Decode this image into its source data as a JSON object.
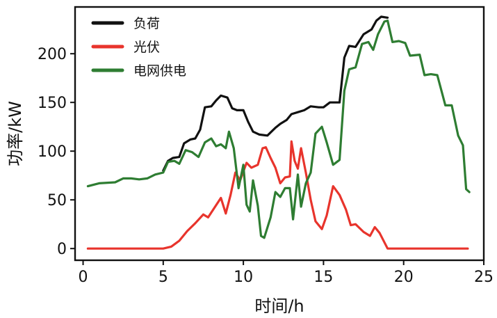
{
  "chart_data": {
    "type": "line",
    "title": "",
    "xlabel": "时间/h",
    "ylabel": "功率/kW",
    "xlim": [
      -0.5,
      25
    ],
    "ylim": [
      -12,
      248
    ],
    "xticks": [
      0,
      5,
      10,
      15,
      20,
      25
    ],
    "yticks": [
      0,
      50,
      100,
      150,
      200
    ],
    "grid": false,
    "legend_position": "top-left",
    "series": [
      {
        "name": "负荷",
        "color": "#111111",
        "points": [
          [
            5.0,
            80
          ],
          [
            5.3,
            90
          ],
          [
            5.6,
            93
          ],
          [
            6.0,
            94
          ],
          [
            6.3,
            108
          ],
          [
            6.7,
            112
          ],
          [
            7.0,
            113
          ],
          [
            7.3,
            122
          ],
          [
            7.6,
            145
          ],
          [
            8.0,
            146
          ],
          [
            8.3,
            152
          ],
          [
            8.6,
            157
          ],
          [
            9.0,
            155
          ],
          [
            9.3,
            144
          ],
          [
            9.6,
            142
          ],
          [
            10.0,
            142
          ],
          [
            10.3,
            130
          ],
          [
            10.6,
            120
          ],
          [
            11.0,
            117
          ],
          [
            11.5,
            116
          ],
          [
            12.0,
            124
          ],
          [
            12.3,
            128
          ],
          [
            12.7,
            132
          ],
          [
            13.0,
            138
          ],
          [
            13.4,
            140
          ],
          [
            13.8,
            142
          ],
          [
            14.2,
            146
          ],
          [
            14.7,
            145
          ],
          [
            15.0,
            145
          ],
          [
            15.4,
            150
          ],
          [
            16.0,
            150
          ],
          [
            16.3,
            196
          ],
          [
            16.6,
            208
          ],
          [
            17.0,
            207
          ],
          [
            17.5,
            220
          ],
          [
            18.0,
            225
          ],
          [
            18.3,
            234
          ],
          [
            18.6,
            238
          ],
          [
            19.0,
            237
          ]
        ]
      },
      {
        "name": "光伏",
        "color": "#e8342c",
        "points": [
          [
            0.3,
            0
          ],
          [
            1.0,
            0
          ],
          [
            2.0,
            0
          ],
          [
            3.0,
            0
          ],
          [
            4.0,
            0
          ],
          [
            5.0,
            0
          ],
          [
            5.5,
            2
          ],
          [
            6.0,
            8
          ],
          [
            6.5,
            18
          ],
          [
            7.0,
            26
          ],
          [
            7.5,
            35
          ],
          [
            7.8,
            32
          ],
          [
            8.2,
            42
          ],
          [
            8.6,
            52
          ],
          [
            8.9,
            36
          ],
          [
            9.2,
            55
          ],
          [
            9.5,
            78
          ],
          [
            9.8,
            70
          ],
          [
            10.2,
            88
          ],
          [
            10.5,
            83
          ],
          [
            10.9,
            86
          ],
          [
            11.2,
            103
          ],
          [
            11.4,
            104
          ],
          [
            11.7,
            93
          ],
          [
            12.0,
            83
          ],
          [
            12.3,
            67
          ],
          [
            12.6,
            73
          ],
          [
            12.9,
            74
          ],
          [
            13.0,
            110
          ],
          [
            13.2,
            90
          ],
          [
            13.4,
            82
          ],
          [
            13.6,
            103
          ],
          [
            13.9,
            78
          ],
          [
            14.2,
            50
          ],
          [
            14.5,
            28
          ],
          [
            14.9,
            20
          ],
          [
            15.2,
            34
          ],
          [
            15.6,
            64
          ],
          [
            16.0,
            55
          ],
          [
            16.4,
            40
          ],
          [
            16.7,
            24
          ],
          [
            17.0,
            25
          ],
          [
            17.5,
            17
          ],
          [
            17.9,
            13
          ],
          [
            18.2,
            22
          ],
          [
            18.5,
            16
          ],
          [
            19.0,
            0
          ],
          [
            20.0,
            0
          ],
          [
            21.0,
            0
          ],
          [
            22.0,
            0
          ],
          [
            23.0,
            0
          ],
          [
            24.0,
            0
          ]
        ]
      },
      {
        "name": "电网供电",
        "color": "#2e7d32",
        "points": [
          [
            0.3,
            64
          ],
          [
            1.0,
            67
          ],
          [
            2.0,
            68
          ],
          [
            2.5,
            72
          ],
          [
            3.0,
            72
          ],
          [
            3.5,
            71
          ],
          [
            4.0,
            72
          ],
          [
            4.5,
            76
          ],
          [
            5.0,
            78
          ],
          [
            5.3,
            89
          ],
          [
            5.7,
            90
          ],
          [
            6.0,
            87
          ],
          [
            6.4,
            101
          ],
          [
            6.8,
            99
          ],
          [
            7.2,
            94
          ],
          [
            7.6,
            109
          ],
          [
            8.0,
            113
          ],
          [
            8.3,
            105
          ],
          [
            8.6,
            107
          ],
          [
            8.9,
            103
          ],
          [
            9.1,
            120
          ],
          [
            9.4,
            103
          ],
          [
            9.7,
            62
          ],
          [
            10.0,
            86
          ],
          [
            10.2,
            45
          ],
          [
            10.4,
            38
          ],
          [
            10.6,
            70
          ],
          [
            10.9,
            44
          ],
          [
            11.1,
            13
          ],
          [
            11.3,
            11
          ],
          [
            11.7,
            32
          ],
          [
            12.0,
            58
          ],
          [
            12.3,
            53
          ],
          [
            12.6,
            62
          ],
          [
            12.9,
            62
          ],
          [
            13.1,
            30
          ],
          [
            13.4,
            76
          ],
          [
            13.6,
            43
          ],
          [
            13.9,
            67
          ],
          [
            14.2,
            78
          ],
          [
            14.5,
            118
          ],
          [
            14.9,
            125
          ],
          [
            15.2,
            109
          ],
          [
            15.6,
            86
          ],
          [
            16.0,
            91
          ],
          [
            16.3,
            162
          ],
          [
            16.6,
            184
          ],
          [
            17.0,
            186
          ],
          [
            17.4,
            210
          ],
          [
            17.8,
            212
          ],
          [
            18.1,
            204
          ],
          [
            18.4,
            220
          ],
          [
            18.8,
            233
          ],
          [
            19.0,
            234
          ],
          [
            19.3,
            212
          ],
          [
            19.7,
            213
          ],
          [
            20.1,
            211
          ],
          [
            20.4,
            198
          ],
          [
            21.0,
            199
          ],
          [
            21.3,
            178
          ],
          [
            21.7,
            179
          ],
          [
            22.1,
            178
          ],
          [
            22.6,
            147
          ],
          [
            23.0,
            147
          ],
          [
            23.4,
            116
          ],
          [
            23.7,
            106
          ],
          [
            23.9,
            61
          ],
          [
            24.1,
            58
          ]
        ]
      }
    ]
  }
}
